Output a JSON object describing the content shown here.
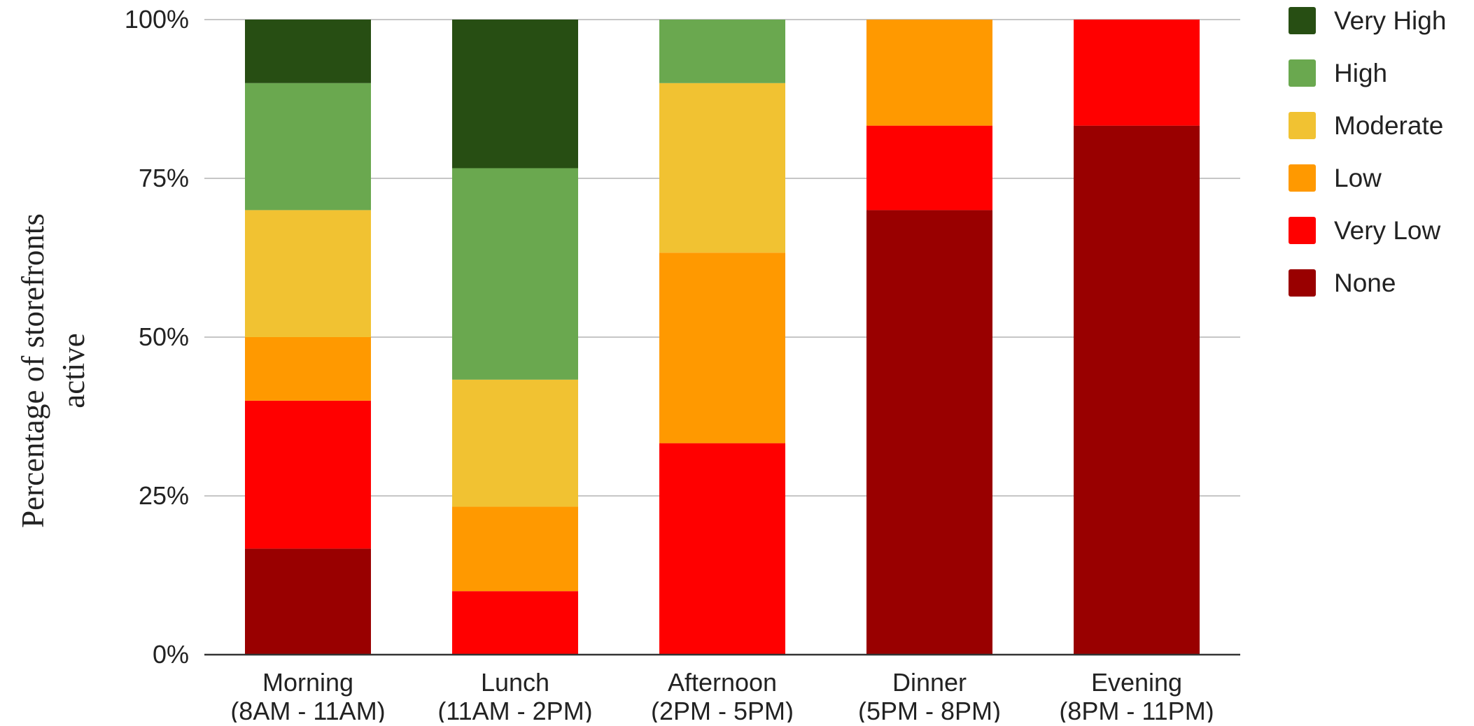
{
  "chart_data": {
    "type": "bar",
    "stacked": true,
    "normalized": true,
    "ylabel_lines": [
      "Percentage of storefronts",
      "active"
    ],
    "xlabel": "",
    "ylim": [
      0,
      100
    ],
    "yticks": [
      0,
      25,
      50,
      75,
      100
    ],
    "ytick_labels": [
      "0%",
      "25%",
      "50%",
      "75%",
      "100%"
    ],
    "grid": true,
    "legend_position": "right",
    "categories": [
      [
        "Morning",
        "(8AM - 11AM)"
      ],
      [
        "Lunch",
        "(11AM - 2PM)"
      ],
      [
        "Afternoon",
        "(2PM - 5PM)"
      ],
      [
        "Dinner",
        "(5PM - 8PM)"
      ],
      [
        "Evening",
        "(8PM - 11PM)"
      ]
    ],
    "series": [
      {
        "name": "None",
        "color": "#990000",
        "values": [
          16.7,
          0,
          0,
          70.0,
          83.3
        ]
      },
      {
        "name": "Very Low",
        "color": "#ff0000",
        "values": [
          23.3,
          10.0,
          33.3,
          13.3,
          16.7
        ]
      },
      {
        "name": "Low",
        "color": "#ff9900",
        "values": [
          10.0,
          13.3,
          30.0,
          16.7,
          0
        ]
      },
      {
        "name": "Moderate",
        "color": "#f1c232",
        "values": [
          20.0,
          20.0,
          26.7,
          0,
          0
        ]
      },
      {
        "name": "High",
        "color": "#6aa84f",
        "values": [
          20.0,
          33.3,
          10.0,
          0,
          0
        ]
      },
      {
        "name": "Very High",
        "color": "#274e13",
        "values": [
          10.0,
          23.4,
          0,
          0,
          0
        ]
      }
    ],
    "legend_order": [
      "Very High",
      "High",
      "Moderate",
      "Low",
      "Very Low",
      "None"
    ]
  }
}
